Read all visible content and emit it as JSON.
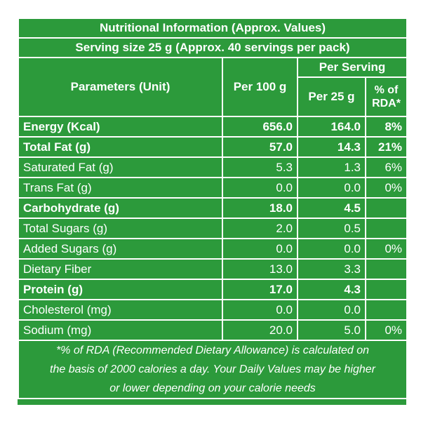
{
  "header": {
    "title": "Nutritional Information (Approx. Values)",
    "serving": "Serving size 25 g (Approx. 40 servings per pack)"
  },
  "columns": {
    "parameters": "Parameters (Unit)",
    "per100": "Per 100 g",
    "perServing": "Per Serving",
    "per25": "Per 25 g",
    "rda_line1": "% of",
    "rda_line2": "RDA*"
  },
  "rows": [
    {
      "label": "Energy (Kcal)",
      "per100": "656.0",
      "per25": "164.0",
      "rda": "8%",
      "bold": true
    },
    {
      "label": "Total Fat (g)",
      "per100": "57.0",
      "per25": "14.3",
      "rda": "21%",
      "bold": true
    },
    {
      "label": "Saturated Fat (g)",
      "per100": "5.3",
      "per25": "1.3",
      "rda": "6%",
      "bold": false
    },
    {
      "label": "Trans Fat (g)",
      "per100": "0.0",
      "per25": "0.0",
      "rda": "0%",
      "bold": false
    },
    {
      "label": "Carbohydrate (g)",
      "per100": "18.0",
      "per25": "4.5",
      "rda": "",
      "bold": true
    },
    {
      "label": "Total Sugars (g)",
      "per100": "2.0",
      "per25": "0.5",
      "rda": "",
      "bold": false
    },
    {
      "label": "Added Sugars (g)",
      "per100": "0.0",
      "per25": "0.0",
      "rda": "0%",
      "bold": false
    },
    {
      "label": "Dietary Fiber",
      "per100": "13.0",
      "per25": "3.3",
      "rda": "",
      "bold": false
    },
    {
      "label": "Protein (g)",
      "per100": "17.0",
      "per25": "4.3",
      "rda": "",
      "bold": true
    },
    {
      "label": "Cholesterol (mg)",
      "per100": "0.0",
      "per25": "0.0",
      "rda": "",
      "bold": false
    },
    {
      "label": "Sodium (mg)",
      "per100": "20.0",
      "per25": "5.0",
      "rda": "0%",
      "bold": false
    }
  ],
  "footnote": {
    "line1": "*% of RDA (Recommended Dietary Allowance) is calculated on",
    "line2": "the basis of 2000 calories a day. Your Daily Values may be higher",
    "line3": "or lower depending on your calorie needs"
  },
  "colors": {
    "panel": "#2c9a3b",
    "text": "#ffffff"
  }
}
